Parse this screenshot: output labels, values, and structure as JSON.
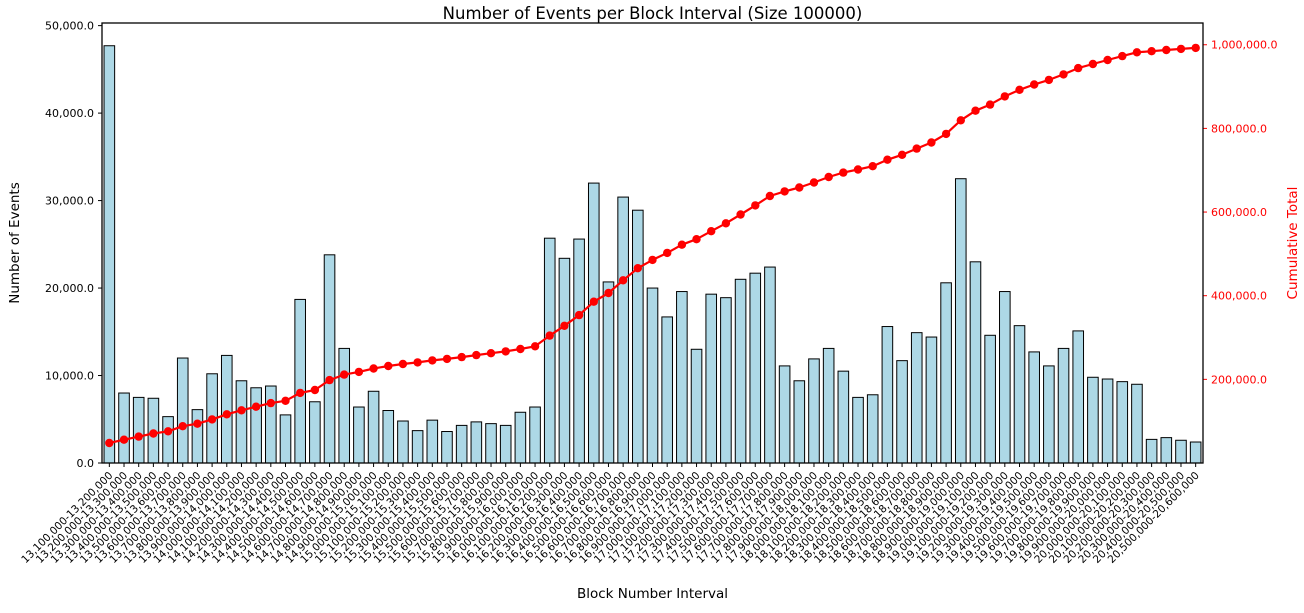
{
  "chart_data": {
    "type": "bar",
    "title": "Number of Events per Block Interval (Size 100000)",
    "xlabel": "Block Number Interval",
    "ylabel_left": "Number of Events",
    "ylabel_right": "Cumulative Total",
    "grid": false,
    "legend": "none",
    "colors": {
      "bar_fill": "#ADD8E6",
      "bar_edge": "#000000",
      "line_color": "#FF0000",
      "axis_color": "#000000",
      "right_axis_color": "#FF0000"
    },
    "categories": [
      "13,100,000-13,200,000",
      "13,200,000-13,300,000",
      "13,300,000-13,400,000",
      "13,400,000-13,500,000",
      "13,500,000-13,600,000",
      "13,600,000-13,700,000",
      "13,700,000-13,800,000",
      "13,800,000-13,900,000",
      "13,900,000-14,000,000",
      "14,000,000-14,100,000",
      "14,100,000-14,200,000",
      "14,200,000-14,300,000",
      "14,300,000-14,400,000",
      "14,400,000-14,500,000",
      "14,500,000-14,600,000",
      "14,600,000-14,700,000",
      "14,700,000-14,800,000",
      "14,800,000-14,900,000",
      "14,900,000-15,000,000",
      "15,000,000-15,100,000",
      "15,100,000-15,200,000",
      "15,200,000-15,300,000",
      "15,300,000-15,400,000",
      "15,400,000-15,500,000",
      "15,500,000-15,600,000",
      "15,600,000-15,700,000",
      "15,700,000-15,800,000",
      "15,800,000-15,900,000",
      "15,900,000-16,000,000",
      "16,000,000-16,100,000",
      "16,100,000-16,200,000",
      "16,200,000-16,300,000",
      "16,300,000-16,400,000",
      "16,400,000-16,500,000",
      "16,500,000-16,600,000",
      "16,600,000-16,700,000",
      "16,700,000-16,800,000",
      "16,800,000-16,900,000",
      "16,900,000-17,000,000",
      "17,000,000-17,100,000",
      "17,100,000-17,200,000",
      "17,200,000-17,300,000",
      "17,300,000-17,400,000",
      "17,400,000-17,500,000",
      "17,500,000-17,600,000",
      "17,600,000-17,700,000",
      "17,700,000-17,800,000",
      "17,800,000-17,900,000",
      "17,900,000-18,000,000",
      "18,000,000-18,100,000",
      "18,100,000-18,200,000",
      "18,200,000-18,300,000",
      "18,300,000-18,400,000",
      "18,400,000-18,500,000",
      "18,500,000-18,600,000",
      "18,600,000-18,700,000",
      "18,700,000-18,800,000",
      "18,800,000-18,900,000",
      "18,900,000-19,000,000",
      "19,000,000-19,100,000",
      "19,100,000-19,200,000",
      "19,200,000-19,300,000",
      "19,300,000-19,400,000",
      "19,400,000-19,500,000",
      "19,500,000-19,600,000",
      "19,600,000-19,700,000",
      "19,700,000-19,800,000",
      "19,800,000-19,900,000",
      "19,900,000-20,000,000",
      "20,000,000-20,100,000",
      "20,100,000-20,200,000",
      "20,200,000-20,300,000",
      "20,300,000-20,400,000",
      "20,400,000-20,500,000",
      "20,500,000-20,600,000"
    ],
    "series": [
      {
        "name": "Number of Events",
        "type": "bar",
        "axis": "left",
        "values": [
          47700,
          8000,
          7500,
          7400,
          5300,
          12000,
          6100,
          10200,
          12300,
          9400,
          8600,
          8800,
          5500,
          18700,
          7000,
          23800,
          13100,
          6400,
          8200,
          6000,
          4800,
          3700,
          4900,
          3600,
          4300,
          4700,
          4500,
          4300,
          5800,
          6400,
          25700,
          23400,
          25600,
          32000,
          20700,
          30400,
          28900,
          20000,
          16700,
          19600,
          13000,
          19300,
          18900,
          21000,
          21700,
          22400,
          11100,
          9400,
          11900,
          13100,
          10500,
          7500,
          7800,
          15600,
          11700,
          14900,
          14400,
          20600,
          32500,
          23000,
          14600,
          19600,
          15700,
          12700,
          11100,
          13100,
          15100,
          9800,
          9600,
          9300,
          9000,
          2700,
          2900,
          2600,
          2400
        ]
      },
      {
        "name": "Cumulative Total",
        "type": "line",
        "axis": "right",
        "derived": "cumulative_sum_of_bar_values"
      }
    ],
    "left_axis": {
      "tick_labels": [
        "0.0",
        "10,000.0",
        "20,000.0",
        "30,000.0",
        "40,000.0",
        "50,000.0"
      ],
      "ylim": [
        0,
        50300
      ]
    },
    "right_axis": {
      "tick_labels": [
        "200,000.0",
        "400,000.0",
        "600,000.0",
        "800,000.0",
        "1,000,000.0"
      ],
      "ylim": [
        0,
        1052000
      ]
    }
  }
}
